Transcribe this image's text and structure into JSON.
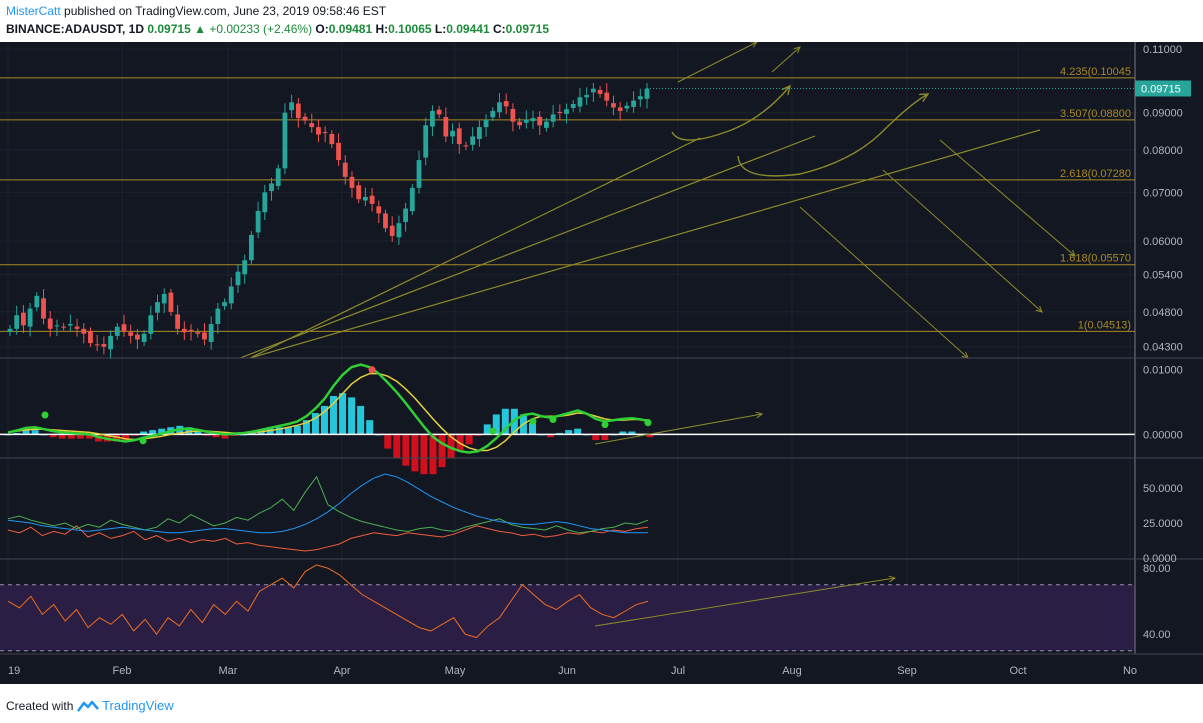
{
  "header": {
    "author": "MisterCatt",
    "published": "published on TradingView.com, June 23, 2019 09:58:46 EST",
    "symbol": "BINANCE:ADAUSDT, 1D",
    "last": "0.09715",
    "change": "+0.00233 (+2.46%)",
    "o_label": "O:",
    "o": "0.09481",
    "h_label": "H:",
    "h": "0.10065",
    "l_label": "L:",
    "l": "0.09441",
    "c_label": "C:",
    "c": "0.09715"
  },
  "footer": {
    "created": "Created with",
    "brand": "TradingView"
  },
  "colors": {
    "background": "#131722",
    "up": "#26a69a",
    "down": "#ef5350",
    "fib": "#a88a25",
    "trend": "#8d8a2a",
    "price_tag": "#26a69a"
  },
  "chart_data": {
    "type": "line",
    "x_ticks": [
      "19",
      "Feb",
      "Mar",
      "Apr",
      "May",
      "Jun",
      "Jul",
      "Aug",
      "Sep",
      "Oct",
      "No"
    ],
    "price_panel": {
      "scale": "log",
      "ylim": [
        0.0415,
        0.1125
      ],
      "y_ticks": [
        "0.11000",
        "0.09000",
        "0.08000",
        "0.07000",
        "0.06000",
        "0.05400",
        "0.04800",
        "0.04300"
      ],
      "current_price": "0.09715",
      "fib_levels": [
        {
          "label": "4.235(0.10045",
          "value": 0.10045
        },
        {
          "label": "3.507(0.08800",
          "value": 0.088
        },
        {
          "label": "2.618(0.07280",
          "value": 0.0728
        },
        {
          "label": "1.618(0.05570",
          "value": 0.0557
        },
        {
          "label": "1(0.04513)",
          "value": 0.04513
        }
      ],
      "close_series": [
        0.0455,
        0.0475,
        0.046,
        0.0485,
        0.0505,
        0.047,
        0.0455,
        0.046,
        0.0458,
        0.0462,
        0.0455,
        0.0448,
        0.0435,
        0.0432,
        0.043,
        0.0445,
        0.0458,
        0.0452,
        0.0445,
        0.044,
        0.0448,
        0.0475,
        0.0495,
        0.0508,
        0.048,
        0.0455,
        0.045,
        0.0452,
        0.0448,
        0.044,
        0.0462,
        0.0485,
        0.0495,
        0.052,
        0.0545,
        0.0565,
        0.0612,
        0.066,
        0.07,
        0.072,
        0.0755,
        0.09,
        0.093,
        0.0885,
        0.0878,
        0.086,
        0.084,
        0.0845,
        0.0815,
        0.0775,
        0.0735,
        0.071,
        0.0685,
        0.069,
        0.0675,
        0.0655,
        0.0625,
        0.061,
        0.0635,
        0.0665,
        0.071,
        0.0775,
        0.0865,
        0.0905,
        0.0895,
        0.0835,
        0.085,
        0.0815,
        0.081,
        0.0835,
        0.086,
        0.088,
        0.0905,
        0.093,
        0.0918,
        0.0875,
        0.0865,
        0.088,
        0.0885,
        0.0865,
        0.0875,
        0.0895,
        0.09,
        0.091,
        0.0925,
        0.0945,
        0.0952,
        0.0971,
        0.0955,
        0.0935,
        0.0915,
        0.0905,
        0.092,
        0.0935,
        0.0948,
        0.0971
      ]
    },
    "macd_panel": {
      "ylim": [
        -0.0035,
        0.0115
      ],
      "y_ticks": [
        "0.01000",
        "0.00000"
      ],
      "macd": [
        0.0003,
        0.0006,
        0.001,
        0.0011,
        0.0008,
        0.0005,
        0.0003,
        0.0002,
        0.0001,
        0.0,
        -0.0004,
        -0.0007,
        -0.0009,
        -0.0011,
        -0.0009,
        -0.0005,
        -0.0002,
        0.0001,
        0.0005,
        0.0008,
        0.0009,
        0.0007,
        0.0004,
        0.0002,
        0.0,
        0.0001,
        0.0002,
        0.0004,
        0.0007,
        0.001,
        0.0013,
        0.0016,
        0.002,
        0.0028,
        0.004,
        0.0055,
        0.0075,
        0.0092,
        0.0104,
        0.0108,
        0.0104,
        0.0094,
        0.008,
        0.0065,
        0.0048,
        0.003,
        0.0012,
        -0.0004,
        -0.0014,
        -0.0021,
        -0.0026,
        -0.0028,
        -0.0026,
        -0.0018,
        -0.0006,
        0.0008,
        0.0022,
        0.003,
        0.0032,
        0.0028,
        0.0026,
        0.0029,
        0.0033,
        0.0037,
        0.0032,
        0.0024,
        0.002,
        0.0022,
        0.0024,
        0.0025,
        0.0023,
        0.002
      ],
      "signal": [
        0.0003,
        0.0005,
        0.0007,
        0.0008,
        0.0008,
        0.0007,
        0.0006,
        0.0005,
        0.0004,
        0.0003,
        0.0001,
        -0.0002,
        -0.0004,
        -0.0007,
        -0.0008,
        -0.0007,
        -0.0005,
        -0.0003,
        0.0,
        0.0002,
        0.0004,
        0.0005,
        0.0005,
        0.0004,
        0.0003,
        0.0002,
        0.0002,
        0.0003,
        0.0004,
        0.0006,
        0.0008,
        0.0011,
        0.0014,
        0.0018,
        0.0025,
        0.0035,
        0.0048,
        0.0063,
        0.0078,
        0.0088,
        0.0094,
        0.0094,
        0.009,
        0.0082,
        0.007,
        0.0056,
        0.004,
        0.0024,
        0.0009,
        -0.0004,
        -0.0014,
        -0.0021,
        -0.0025,
        -0.0025,
        -0.002,
        -0.001,
        0.0004,
        0.0016,
        0.0024,
        0.0028,
        0.0028,
        0.0028,
        0.003,
        0.0033,
        0.0032,
        0.0028,
        0.0024,
        0.0022,
        0.0022,
        0.0023,
        0.0023,
        0.0022
      ]
    },
    "dmi_panel": {
      "ylim": [
        0,
        70
      ],
      "y_ticks": [
        "50.0000",
        "25.0000",
        "0.0000"
      ],
      "adx": [
        27,
        26,
        25,
        23,
        22,
        21,
        20,
        19,
        20,
        21,
        22,
        21,
        20,
        19,
        18,
        18,
        19,
        20,
        21,
        21,
        20,
        19,
        18,
        18,
        19,
        21,
        24,
        28,
        33,
        39,
        46,
        52,
        57,
        60,
        58,
        54,
        49,
        44,
        40,
        36,
        33,
        30,
        28,
        26,
        25,
        24,
        24,
        25,
        26,
        25,
        23,
        21,
        20,
        19,
        18,
        18,
        18
      ],
      "di_plus": [
        28,
        30,
        27,
        25,
        23,
        25,
        21,
        24,
        22,
        27,
        24,
        22,
        20,
        22,
        28,
        25,
        31,
        27,
        23,
        25,
        29,
        27,
        32,
        36,
        42,
        34,
        47,
        58,
        38,
        33,
        29,
        26,
        24,
        22,
        20,
        19,
        21,
        22,
        20,
        19,
        22,
        24,
        26,
        28,
        24,
        22,
        21,
        20,
        23,
        20,
        18,
        19,
        21,
        22,
        25,
        24,
        27
      ],
      "di_minus": [
        20,
        18,
        22,
        16,
        19,
        17,
        23,
        15,
        18,
        14,
        16,
        19,
        13,
        16,
        12,
        14,
        11,
        13,
        12,
        14,
        10,
        11,
        9,
        8,
        7,
        6,
        5,
        6,
        8,
        10,
        14,
        16,
        18,
        17,
        16,
        18,
        17,
        16,
        15,
        17,
        20,
        23,
        21,
        19,
        18,
        16,
        17,
        15,
        16,
        18,
        17,
        19,
        18,
        20,
        19,
        21,
        22
      ]
    },
    "rsi_panel": {
      "ylim": [
        28,
        85
      ],
      "y_ticks": [
        "80.00",
        "40.00"
      ],
      "band_upper": 70,
      "band_lower": 30,
      "rsi": [
        60,
        56,
        63,
        52,
        58,
        48,
        55,
        44,
        50,
        46,
        52,
        42,
        49,
        40,
        50,
        45,
        55,
        47,
        58,
        52,
        60,
        54,
        66,
        70,
        74,
        68,
        78,
        82,
        80,
        76,
        70,
        64,
        60,
        56,
        52,
        48,
        44,
        42,
        46,
        50,
        40,
        38,
        45,
        50,
        60,
        70,
        64,
        58,
        55,
        60,
        64,
        56,
        52,
        50,
        54,
        58,
        60
      ]
    }
  }
}
